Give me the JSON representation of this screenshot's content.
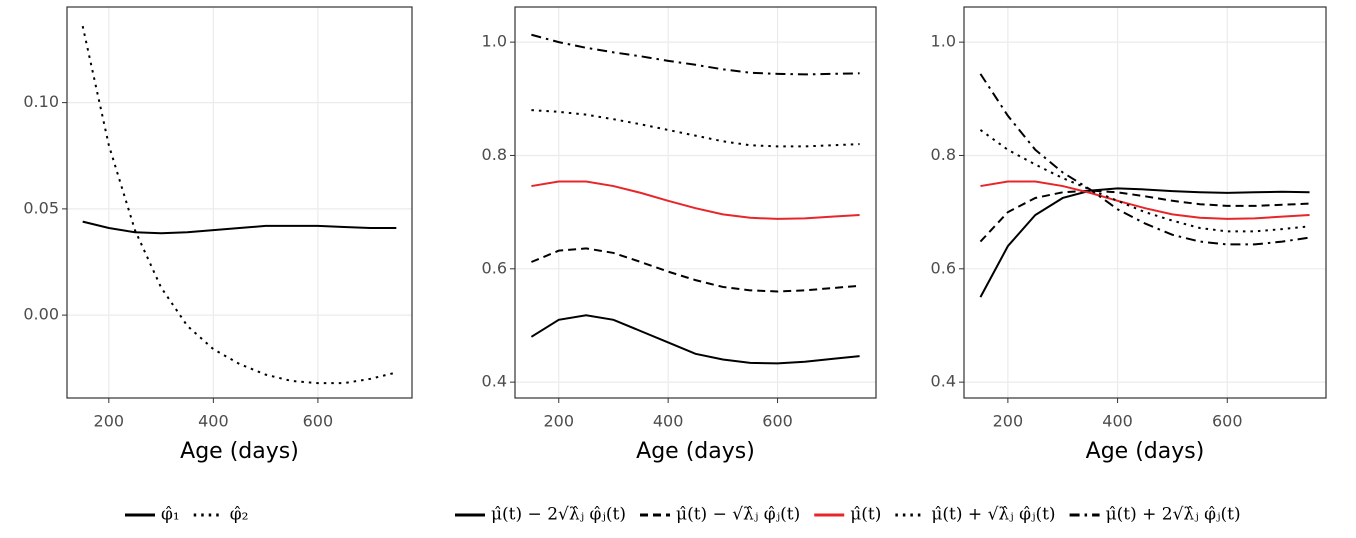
{
  "chart_data": [
    {
      "type": "line",
      "x_label": "Age (days)",
      "x": [
        150,
        200,
        250,
        300,
        350,
        400,
        450,
        500,
        550,
        600,
        650,
        700,
        750
      ],
      "xlim": [
        120,
        780
      ],
      "xticks": [
        200,
        400,
        600
      ],
      "ylim": [
        -0.039,
        0.145
      ],
      "yticks": [
        {
          "value": 0,
          "label": "0.00"
        },
        {
          "value": 0.05,
          "label": "0.05"
        },
        {
          "value": 0.1,
          "label": "0.10"
        }
      ],
      "grid": true,
      "series": [
        {
          "name": "φ̂₁",
          "color": "#000000",
          "dash": "solid",
          "values": [
            0.044,
            0.041,
            0.039,
            0.0385,
            0.039,
            0.04,
            0.041,
            0.042,
            0.042,
            0.042,
            0.0415,
            0.041,
            0.041
          ]
        },
        {
          "name": "φ̂₂",
          "color": "#000000",
          "dash": "dotted",
          "values": [
            0.136,
            0.08,
            0.04,
            0.013,
            -0.005,
            -0.016,
            -0.023,
            -0.028,
            -0.031,
            -0.032,
            -0.032,
            -0.03,
            -0.027
          ]
        }
      ]
    },
    {
      "type": "line",
      "x_label": "Age (days)",
      "x": [
        150,
        200,
        250,
        300,
        350,
        400,
        450,
        500,
        550,
        600,
        650,
        700,
        750
      ],
      "xlim": [
        120,
        780
      ],
      "xticks": [
        200,
        400,
        600
      ],
      "ylim": [
        0.372,
        1.062
      ],
      "yticks": [
        0.4,
        0.6,
        0.8,
        {
          "value": 1,
          "label": "1.0"
        }
      ],
      "grid": true,
      "series": [
        {
          "name": "μ̂(t) − 2√λ̂ⱼ φ̂ⱼ(t)",
          "color": "#000000",
          "dash": "solid",
          "values": [
            0.48,
            0.51,
            0.518,
            0.51,
            0.49,
            0.47,
            0.45,
            0.44,
            0.434,
            0.433,
            0.436,
            0.441,
            0.446
          ]
        },
        {
          "name": "μ̂(t) − √λ̂ⱼ φ̂ⱼ(t)",
          "color": "#000000",
          "dash": "dashed",
          "values": [
            0.612,
            0.632,
            0.636,
            0.628,
            0.612,
            0.595,
            0.58,
            0.568,
            0.562,
            0.56,
            0.562,
            0.566,
            0.57
          ]
        },
        {
          "name": "μ̂(t)",
          "color": "#e8262a",
          "dash": "solid",
          "values": [
            0.746,
            0.754,
            0.754,
            0.746,
            0.734,
            0.72,
            0.707,
            0.696,
            0.69,
            0.688,
            0.689,
            0.692,
            0.695
          ]
        },
        {
          "name": "μ̂(t) + √λ̂ⱼ φ̂ⱼ(t)",
          "color": "#000000",
          "dash": "dotted",
          "values": [
            0.88,
            0.877,
            0.872,
            0.864,
            0.855,
            0.845,
            0.835,
            0.825,
            0.818,
            0.816,
            0.816,
            0.818,
            0.82
          ]
        },
        {
          "name": "μ̂(t) + 2√λ̂ⱼ φ̂ⱼ(t)",
          "color": "#000000",
          "dash": "dashdot",
          "values": [
            1.013,
            1.0,
            0.99,
            0.982,
            0.975,
            0.967,
            0.96,
            0.952,
            0.946,
            0.944,
            0.943,
            0.944,
            0.945
          ]
        }
      ]
    },
    {
      "type": "line",
      "x_label": "Age (days)",
      "x": [
        150,
        200,
        250,
        300,
        350,
        400,
        450,
        500,
        550,
        600,
        650,
        700,
        750
      ],
      "xlim": [
        120,
        780
      ],
      "xticks": [
        200,
        400,
        600
      ],
      "ylim": [
        0.372,
        1.062
      ],
      "yticks": [
        0.4,
        0.6,
        0.8,
        {
          "value": 1,
          "label": "1.0"
        }
      ],
      "grid": true,
      "series": [
        {
          "color": "#000000",
          "dash": "solid",
          "values": [
            0.55,
            0.64,
            0.695,
            0.725,
            0.738,
            0.742,
            0.74,
            0.737,
            0.735,
            0.734,
            0.735,
            0.736,
            0.735
          ]
        },
        {
          "color": "#000000",
          "dash": "dashed",
          "values": [
            0.648,
            0.7,
            0.725,
            0.735,
            0.738,
            0.735,
            0.728,
            0.72,
            0.714,
            0.711,
            0.711,
            0.713,
            0.715
          ]
        },
        {
          "color": "#e8262a",
          "dash": "solid",
          "values": [
            0.746,
            0.754,
            0.754,
            0.746,
            0.734,
            0.72,
            0.707,
            0.696,
            0.69,
            0.688,
            0.689,
            0.692,
            0.695
          ]
        },
        {
          "color": "#000000",
          "dash": "dotted",
          "values": [
            0.845,
            0.81,
            0.784,
            0.76,
            0.74,
            0.72,
            0.7,
            0.685,
            0.672,
            0.666,
            0.666,
            0.67,
            0.675
          ]
        },
        {
          "color": "#000000",
          "dash": "dashdot",
          "values": [
            0.944,
            0.87,
            0.81,
            0.77,
            0.74,
            0.705,
            0.68,
            0.66,
            0.648,
            0.643,
            0.643,
            0.648,
            0.655
          ]
        }
      ]
    }
  ]
}
